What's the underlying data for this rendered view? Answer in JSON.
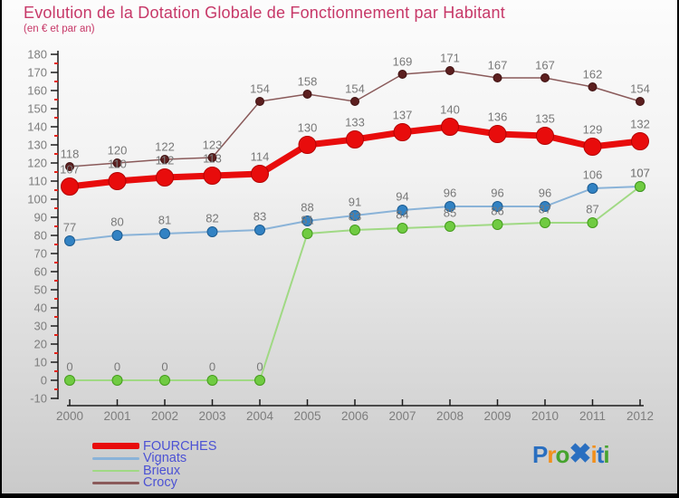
{
  "header": {
    "title": "Evolution de la Dotation Globale de Fonctionnement par Habitant",
    "subtitle": "(en € et par an)",
    "title_color": "#c73868"
  },
  "chart_data": {
    "type": "line",
    "title": "Evolution de la Dotation Globale de Fonctionnement par Habitant",
    "subtitle": "(en € et par an)",
    "categories": [
      "2000",
      "2001",
      "2002",
      "2003",
      "2004",
      "2005",
      "2006",
      "2007",
      "2008",
      "2009",
      "2010",
      "2011",
      "2012"
    ],
    "series": [
      {
        "name": "FOURCHES",
        "values": [
          107,
          110,
          112,
          113,
          114,
          130,
          133,
          137,
          140,
          136,
          135,
          129,
          132
        ],
        "line_color": "#e80c0c",
        "line_width": 7,
        "marker_color": "#e80c0c",
        "marker_edge": "#b50303",
        "marker_radius": 9.5,
        "legend_thickness": 7
      },
      {
        "name": "Vignats",
        "values": [
          77,
          80,
          81,
          82,
          83,
          88,
          91,
          94,
          96,
          96,
          96,
          106,
          107
        ],
        "line_color": "#8ab3d8",
        "line_width": 2,
        "marker_color": "#3282c3",
        "marker_edge": "#1d5c91",
        "marker_radius": 5.5,
        "legend_thickness": 2.5
      },
      {
        "name": "Brieux",
        "values": [
          0,
          0,
          0,
          0,
          0,
          81,
          83,
          84,
          85,
          86,
          87,
          87,
          107
        ],
        "line_color": "#a0d984",
        "line_width": 2,
        "marker_color": "#70cb42",
        "marker_edge": "#459c1d",
        "marker_radius": 5.5,
        "legend_thickness": 2.5
      },
      {
        "name": "Crocy",
        "values": [
          118,
          120,
          122,
          123,
          154,
          158,
          154,
          169,
          171,
          167,
          167,
          162,
          154
        ],
        "line_color": "#8a5a5a",
        "line_width": 1.5,
        "marker_color": "#5c1f1f",
        "marker_edge": "#3f1212",
        "marker_radius": 4.5,
        "legend_thickness": 2.5
      }
    ],
    "ylim": [
      -10,
      180
    ],
    "ytick_step": 10,
    "grid": false,
    "legend_position": "bottom-left",
    "axis_color": "#1c1c1c",
    "tick_label_color": "#7d7d7d",
    "data_label_color": "#787878",
    "minor_tick_color": "#e32219",
    "legend_text_color": "#4c52d4"
  },
  "logo": {
    "name": "Proxiti",
    "letters": [
      {
        "ch": "P",
        "color": "#2a6fc0",
        "big": false
      },
      {
        "ch": "r",
        "color": "#f2901c",
        "big": false
      },
      {
        "ch": "o",
        "color": "#46a32e",
        "big": false
      },
      {
        "ch": "✖",
        "color": "#2a6fc0",
        "big": true
      },
      {
        "ch": "i",
        "color": "#f2901c",
        "big": false
      },
      {
        "ch": "t",
        "color": "#2a6fc0",
        "big": false
      },
      {
        "ch": "i",
        "color": "#46a32e",
        "big": false
      }
    ]
  }
}
